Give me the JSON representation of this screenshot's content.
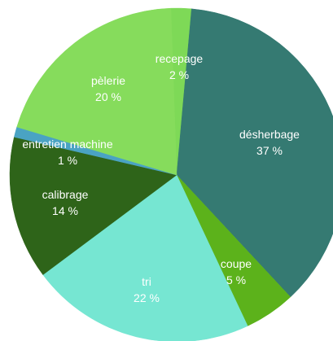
{
  "chart_data": {
    "type": "pie",
    "title": "",
    "slices": [
      {
        "label": "recepage",
        "value_label": "2 %",
        "value": 2,
        "color": "#7ed957"
      },
      {
        "label": "désherbage",
        "value_label": "37 %",
        "value": 37,
        "color": "#357a72"
      },
      {
        "label": "coupe",
        "value_label": "5 %",
        "value": 5,
        "color": "#5cb21b"
      },
      {
        "label": "tri",
        "value_label": "22 %",
        "value": 22,
        "color": "#76e6d2"
      },
      {
        "label": "calibrage",
        "value_label": "14 %",
        "value": 14,
        "color": "#2e6419"
      },
      {
        "label": "entretien machine",
        "value_label": "1 %",
        "value": 1,
        "color": "#4aa3c3"
      },
      {
        "label": "pèlerie",
        "value_label": "20 %",
        "value": 20,
        "color": "#86dc5c"
      }
    ]
  }
}
